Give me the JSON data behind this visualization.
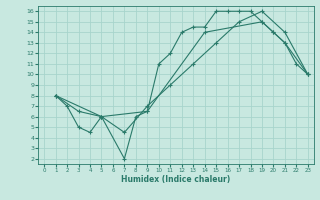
{
  "xlabel": "Humidex (Indice chaleur)",
  "bg_color": "#c8e8e0",
  "grid_color": "#a8d4cc",
  "line_color": "#2a7a6a",
  "xlim": [
    -0.5,
    23.5
  ],
  "ylim": [
    1.5,
    16.5
  ],
  "xticks": [
    0,
    1,
    2,
    3,
    4,
    5,
    6,
    7,
    8,
    9,
    10,
    11,
    12,
    13,
    14,
    15,
    16,
    17,
    18,
    19,
    20,
    21,
    22,
    23
  ],
  "yticks": [
    2,
    3,
    4,
    5,
    6,
    7,
    8,
    9,
    10,
    11,
    12,
    13,
    14,
    15,
    16
  ],
  "line1_x": [
    1,
    2,
    3,
    4,
    5,
    7,
    8,
    9,
    10,
    11,
    12,
    13,
    14,
    15,
    16,
    17,
    18,
    19,
    20,
    21,
    22,
    23
  ],
  "line1_y": [
    8,
    7,
    5,
    4.5,
    6,
    2,
    6,
    6.5,
    11,
    12,
    14,
    14.5,
    14.5,
    16,
    16,
    16,
    16,
    15,
    14,
    13,
    11,
    10
  ],
  "line2_x": [
    1,
    5,
    9,
    14,
    19,
    20,
    21,
    23
  ],
  "line2_y": [
    8,
    6,
    6.5,
    14,
    15,
    14,
    13,
    10
  ],
  "line3_x": [
    1,
    3,
    5,
    7,
    9,
    11,
    13,
    15,
    17,
    19,
    21,
    23
  ],
  "line3_y": [
    8,
    6.5,
    6,
    4.5,
    7,
    9,
    11,
    13,
    15,
    16,
    14,
    10
  ]
}
